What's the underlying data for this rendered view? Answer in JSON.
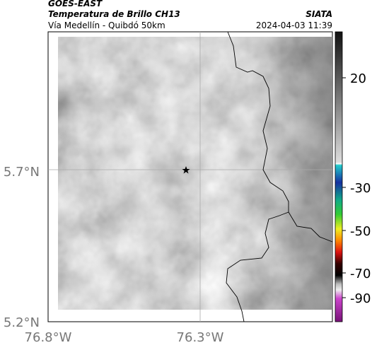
{
  "header": {
    "title": "GOES-EAST",
    "subtitle": "Temperatura de Brillo CH13",
    "source": "SIATA",
    "location": "Vía Medellín - Quibdó 50km",
    "datetime": "2024-04-03 11:39"
  },
  "map": {
    "lat_labels": [
      "5.7°N",
      "5.2°N"
    ],
    "lon_labels": [
      "76.8°W",
      "76.3°W"
    ]
  },
  "colorbar": {
    "ticks": [
      20,
      -30,
      -50,
      -70,
      -90
    ]
  }
}
